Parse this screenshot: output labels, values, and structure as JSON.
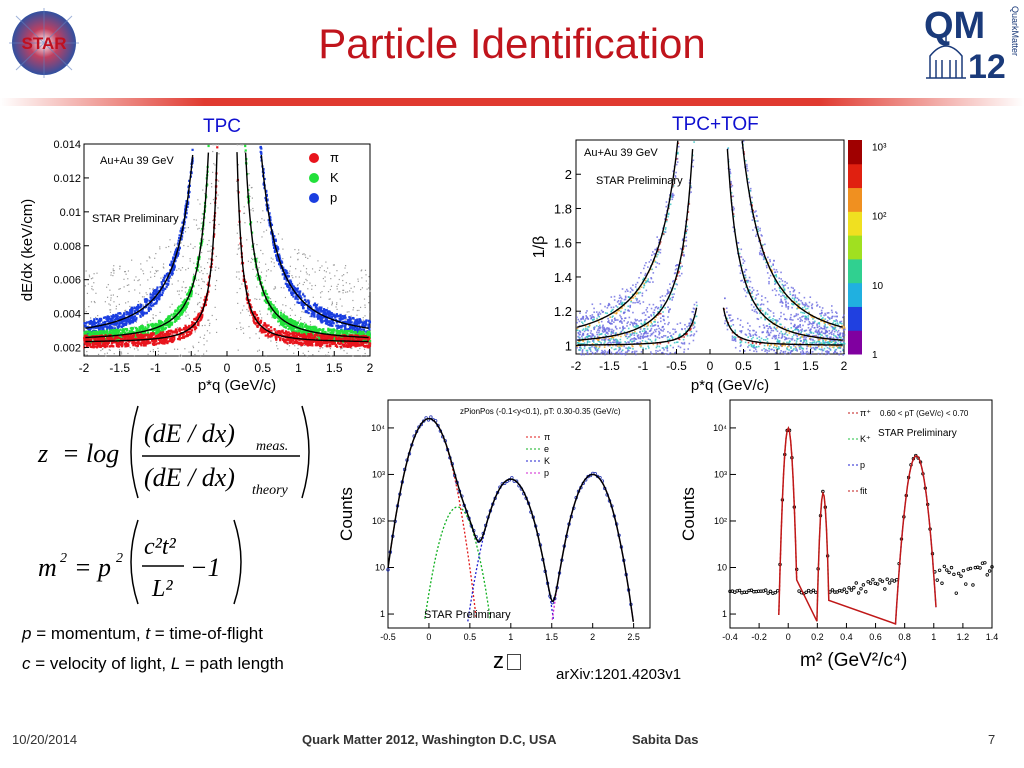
{
  "slide": {
    "title": "Particle Identification",
    "footer_date": "10/20/2014",
    "footer_conference": "Quark Matter 2012, Washington D.C, USA",
    "footer_author": "Sabita Das",
    "footer_page": "7",
    "logo_left": "STAR",
    "logo_right_top": "QM",
    "logo_right_num": "12",
    "logo_right_side": "QuarkMatter"
  },
  "labels": {
    "tpc": "TPC",
    "tpc_tof": "TPC+TOF",
    "arxiv": "arXiv:1201.4203v1",
    "zaxis": "z",
    "m2axis": "m² (GeV²/c⁴)",
    "counts": "Counts"
  },
  "captions": {
    "p_var": "p",
    "p_text": " = momentum, ",
    "t_var": "t",
    "t_text": " = time-of-flight",
    "c_var": "c",
    "c_text": " = velocity of light, ",
    "l_var": "L",
    "l_text": " = path length"
  },
  "formulas": {
    "z_lhs": "z",
    "log": "log",
    "num": "(dE / dx)",
    "num_sub": "meas.",
    "den": "(dE / dx)",
    "den_sub": "theory",
    "m_lhs": "m",
    "m_rhs": "p",
    "frac_num": "c²t²",
    "frac_den": "L²",
    "minus_one": "−1"
  },
  "chart_data": [
    {
      "type": "scatter",
      "title": "",
      "subtitle": "Au+Au 39 GeV",
      "annotation": "STAR Preliminary",
      "xlabel": "p*q (GeV/c)",
      "ylabel": "dE/dx (keV/cm)",
      "xlim": [
        -2,
        2
      ],
      "ylim": [
        0.0015,
        0.014
      ],
      "xticks": [
        "-2",
        "-1.5",
        "-1",
        "-0.5",
        "0",
        "0.5",
        "1",
        "1.5",
        "2"
      ],
      "yticks": [
        "0.002",
        "0.004",
        "0.006",
        "0.008",
        "0.01",
        "0.012",
        "0.014"
      ],
      "legend": [
        "π",
        "K",
        "p"
      ],
      "legend_colors": [
        "#e8141c",
        "#22e03a",
        "#1a3ee0"
      ]
    },
    {
      "type": "heatmap",
      "subtitle": "Au+Au 39 GeV",
      "annotation": "STAR Preliminary",
      "xlabel": "p*q (GeV/c)",
      "ylabel": "1/β",
      "xlim": [
        -2,
        2
      ],
      "ylim": [
        0.95,
        2.2
      ],
      "xticks": [
        "-2",
        "-1.5",
        "-1",
        "-0.5",
        "0",
        "0.5",
        "1",
        "1.5",
        "2"
      ],
      "yticks": [
        "1",
        "1.2",
        "1.4",
        "1.6",
        "1.8",
        "2"
      ],
      "colorbar_ticks": [
        "1",
        "10",
        "10²",
        "10³"
      ]
    },
    {
      "type": "line",
      "title": "zPionPos (-0.1<y<0.1), pT: 0.30-0.35 (GeV/c)",
      "annotation": "STAR Preliminary",
      "ylabel": "Counts",
      "xlim": [
        -0.5,
        2.7
      ],
      "xticks": [
        "-0.5",
        "0",
        "0.5",
        "1",
        "1.5",
        "2",
        "2.5"
      ],
      "yticks": [
        "1",
        "10",
        "10²",
        "10³",
        "10⁴"
      ],
      "yscale": "log",
      "legend": [
        "π",
        "e",
        "K",
        "p"
      ],
      "series": [
        {
          "name": "π",
          "color": "#e01818",
          "peak": 0.0,
          "height": 4.2
        },
        {
          "name": "e",
          "color": "#10b020",
          "peak": 0.35,
          "height": 2.3
        },
        {
          "name": "K",
          "color": "#2020d0",
          "peak": 1.0,
          "height": 2.9
        },
        {
          "name": "p",
          "color": "#d020d0",
          "peak": 2.0,
          "height": 3.0
        }
      ]
    },
    {
      "type": "line",
      "annotation": "STAR Preliminary",
      "legend_title": "0.60 < pT (GeV/c) < 0.70",
      "ylabel": "Counts",
      "xlim": [
        -0.4,
        1.4
      ],
      "xticks": [
        "-0.4",
        "-0.2",
        "0",
        "0.2",
        "0.4",
        "0.6",
        "0.8",
        "1",
        "1.2",
        "1.4"
      ],
      "yticks": [
        "1",
        "10",
        "10²",
        "10³",
        "10⁴"
      ],
      "yscale": "log",
      "legend": [
        "π⁺",
        "K⁺",
        "p",
        "fit"
      ],
      "series": [
        {
          "name": "π⁺",
          "color": "#e01818",
          "peak": 0.0,
          "height": 4.0
        },
        {
          "name": "K⁺",
          "color": "#20c040",
          "peak": 0.24,
          "height": 2.6
        },
        {
          "name": "p",
          "color": "#2020d0",
          "peak": 0.88,
          "height": 3.4
        }
      ]
    }
  ]
}
